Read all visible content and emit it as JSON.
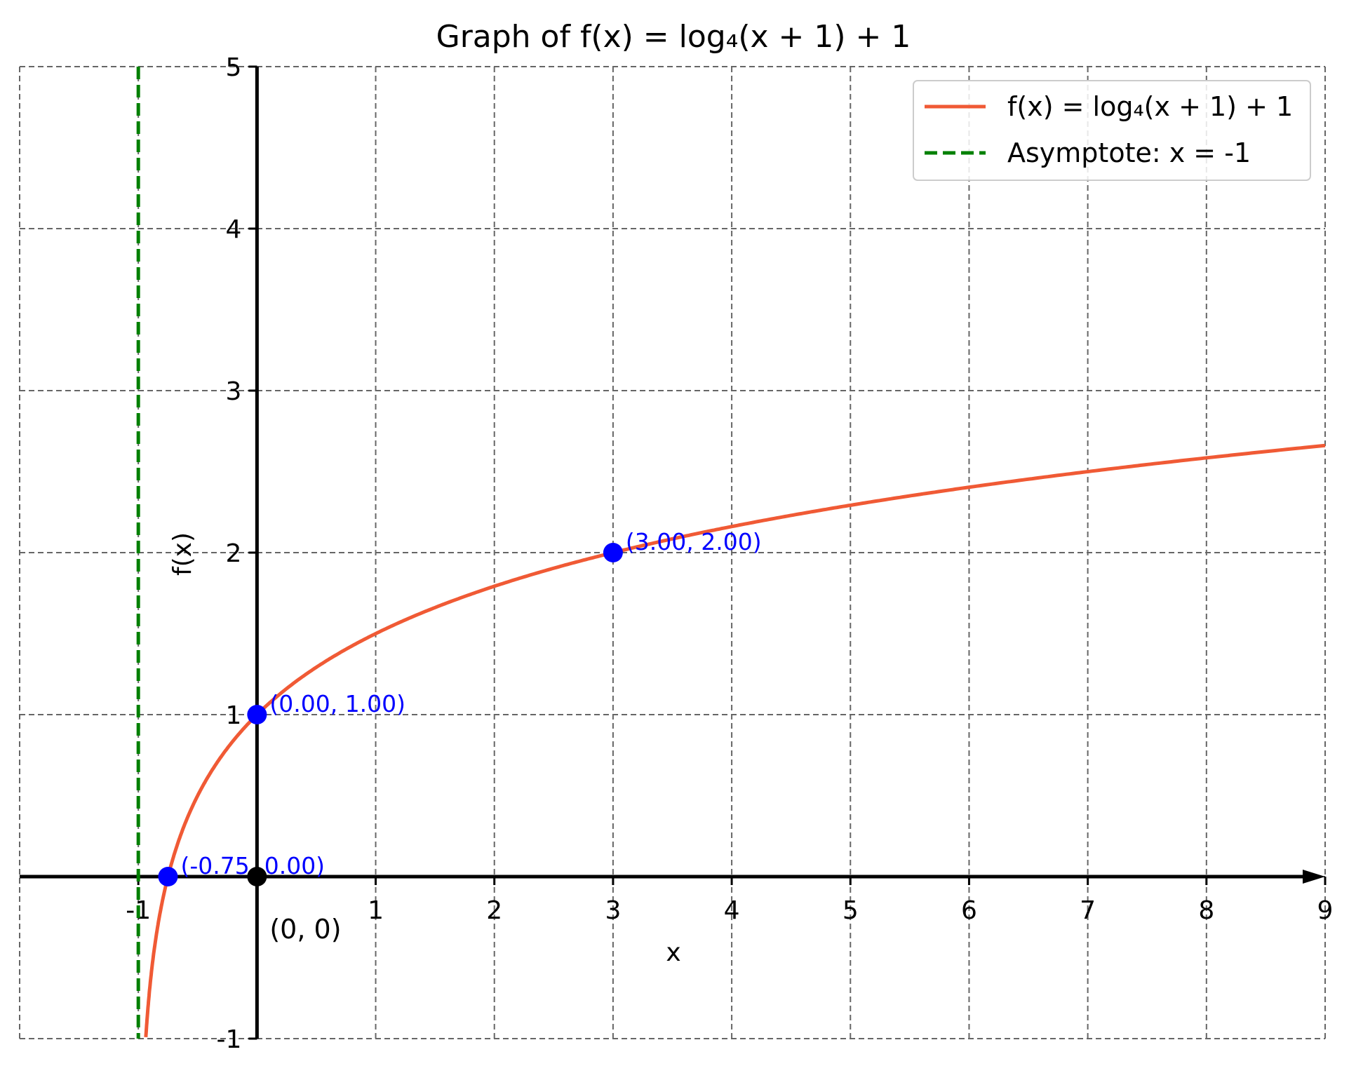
{
  "chart_data": {
    "type": "line",
    "title": "Graph of f(x) = log₄(x + 1) + 1",
    "xlabel": "x",
    "ylabel": "f(x)",
    "xlim": [
      -2,
      9
    ],
    "ylim": [
      -1,
      5
    ],
    "x_ticks": [
      "-1",
      "1",
      "2",
      "3",
      "4",
      "5",
      "6",
      "7",
      "8",
      "9"
    ],
    "x_tick_values": [
      -1,
      1,
      2,
      3,
      4,
      5,
      6,
      7,
      8,
      9
    ],
    "y_ticks": [
      "-1",
      "1",
      "2",
      "3",
      "4",
      "5"
    ],
    "y_tick_values": [
      -1,
      1,
      2,
      3,
      4,
      5
    ],
    "grid": true,
    "legend_placement": "top-right",
    "series": [
      {
        "name": "f(x) = log₄(x + 1) + 1",
        "function": "log4(x+1)+1",
        "x_range": [
          -0.94,
          9
        ],
        "color": "#f05a35",
        "style": "solid"
      },
      {
        "name": "Asymptote: x = -1",
        "x": -1,
        "color": "#008000",
        "style": "dashed"
      }
    ],
    "points": [
      {
        "x": -0.75,
        "y": 0,
        "label": "(-0.75, 0.00)",
        "color": "#0000ff"
      },
      {
        "x": 0,
        "y": 1,
        "label": "(0.00, 1.00)",
        "color": "#0000ff"
      },
      {
        "x": 3,
        "y": 2,
        "label": "(3.00, 2.00)",
        "color": "#0000ff"
      },
      {
        "x": 0,
        "y": 0,
        "label": "(0, 0)",
        "color": "#000000"
      }
    ]
  }
}
